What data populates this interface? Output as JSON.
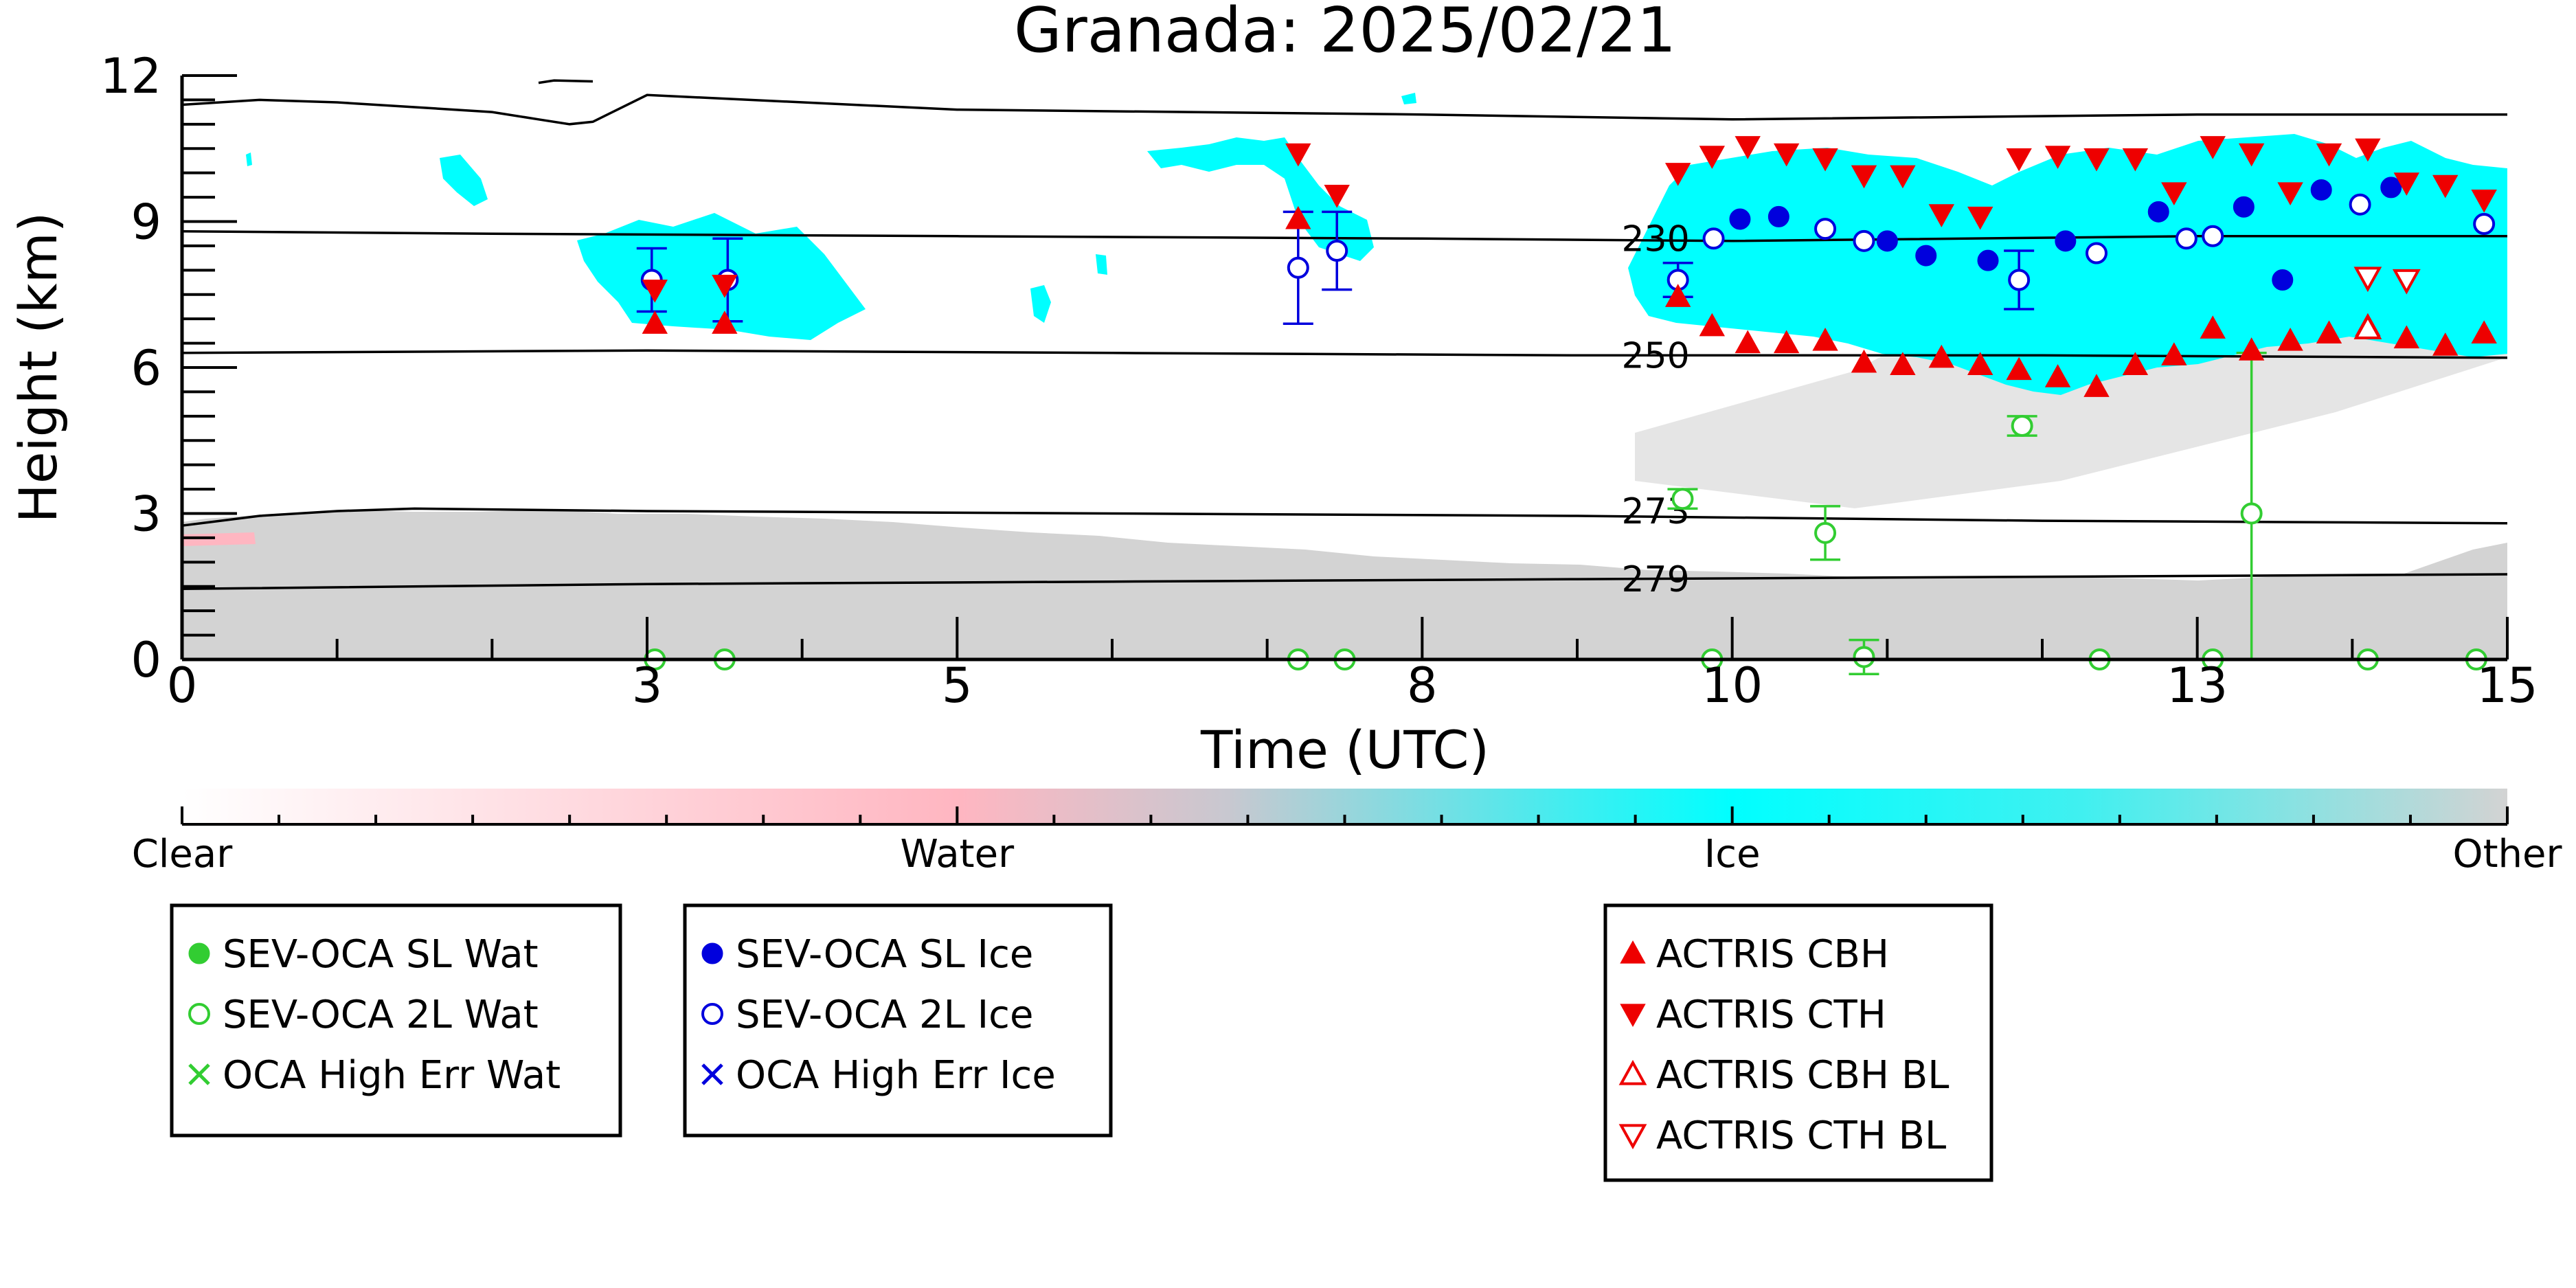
{
  "chart_data": {
    "type": "scatter",
    "title": "Granada: 2025/02/21",
    "xlabel": "Time (UTC)",
    "ylabel": "Height (km)",
    "xlim": [
      0,
      15
    ],
    "ylim": [
      0,
      12
    ],
    "x_ticks": [
      {
        "value": 0,
        "label": "0"
      },
      {
        "value": 3,
        "label": "3"
      },
      {
        "value": 5,
        "label": "5"
      },
      {
        "value": 8,
        "label": "8"
      },
      {
        "value": 10,
        "label": "10"
      },
      {
        "value": 13,
        "label": "13"
      },
      {
        "value": 15,
        "label": "15"
      }
    ],
    "y_ticks": [
      {
        "value": 0,
        "label": "0"
      },
      {
        "value": 3,
        "label": "3"
      },
      {
        "value": 6,
        "label": "6"
      },
      {
        "value": 9,
        "label": "9"
      },
      {
        "value": 12,
        "label": "12"
      }
    ],
    "colors": {
      "clear": "#ffffff",
      "water": "#ffb6c1",
      "ice": "#00ffff",
      "other": "#d3d3d3",
      "sl_wat": "#32cd32",
      "ice_marker": "#0000dd",
      "actris": "#ee0000",
      "isotherm": "#000000"
    },
    "isotherms": [
      {
        "label": "230",
        "x": [
          0,
          2,
          5,
          8,
          10,
          13,
          15
        ],
        "y": [
          8.8,
          8.75,
          8.7,
          8.65,
          8.6,
          8.7,
          8.7
        ]
      },
      {
        "label": "250",
        "x": [
          0,
          3,
          6,
          9,
          12,
          15
        ],
        "y": [
          6.3,
          6.35,
          6.3,
          6.25,
          6.25,
          6.2
        ]
      },
      {
        "label": "273",
        "x": [
          0,
          0.5,
          1,
          1.5,
          3,
          6,
          9,
          12,
          15
        ],
        "y": [
          2.75,
          2.95,
          3.05,
          3.1,
          3.05,
          3.0,
          2.95,
          2.85,
          2.8
        ]
      },
      {
        "label": "279",
        "x": [
          0,
          3,
          6,
          9,
          12,
          15
        ],
        "y": [
          1.45,
          1.55,
          1.6,
          1.65,
          1.7,
          1.75
        ]
      }
    ],
    "top_contour": {
      "x": [
        0,
        0.5,
        1,
        1.5,
        2,
        2.3,
        2.5,
        2.65,
        3,
        5,
        8,
        10,
        13,
        15
      ],
      "y": [
        11.4,
        11.5,
        11.45,
        11.35,
        11.25,
        11.1,
        11.0,
        11.05,
        11.6,
        11.3,
        11.2,
        11.1,
        11.2,
        11.2
      ]
    },
    "top_contour_2": {
      "x": [
        2.3,
        2.4,
        2.65
      ],
      "y": [
        11.85,
        11.9,
        11.88
      ]
    },
    "series": [
      {
        "name": "SEV-OCA SL Wat",
        "marker": "filled-circle",
        "color": "#32cd32",
        "points": []
      },
      {
        "name": "SEV-OCA 2L Wat",
        "marker": "open-circle",
        "color": "#32cd32",
        "points": [
          {
            "x": 3.05,
            "y": 0.0
          },
          {
            "x": 3.5,
            "y": 0.0
          },
          {
            "x": 7.2,
            "y": 0.0
          },
          {
            "x": 7.5,
            "y": 0.0
          },
          {
            "x": 9.68,
            "y": 3.3,
            "err": 0.2
          },
          {
            "x": 9.87,
            "y": 0.0
          },
          {
            "x": 10.6,
            "y": 2.6,
            "err": 0.55
          },
          {
            "x": 10.85,
            "y": 0.05,
            "err": 0.35
          },
          {
            "x": 11.87,
            "y": 4.8,
            "err": 0.2
          },
          {
            "x": 12.37,
            "y": 0.0
          },
          {
            "x": 13.1,
            "y": 0.0
          },
          {
            "x": 13.35,
            "y": 3.0,
            "lo": 0.0,
            "hi": 6.3
          },
          {
            "x": 14.1,
            "y": 0.0
          },
          {
            "x": 14.8,
            "y": 0.0
          }
        ]
      },
      {
        "name": "OCA High Err Wat",
        "marker": "x",
        "color": "#32cd32",
        "points": []
      },
      {
        "name": "SEV-OCA SL Ice",
        "marker": "filled-circle",
        "color": "#0000dd",
        "points": [
          {
            "x": 10.05,
            "y": 9.05
          },
          {
            "x": 10.3,
            "y": 9.1
          },
          {
            "x": 11.0,
            "y": 8.6
          },
          {
            "x": 11.25,
            "y": 8.3
          },
          {
            "x": 11.65,
            "y": 8.2
          },
          {
            "x": 12.15,
            "y": 8.6
          },
          {
            "x": 12.75,
            "y": 9.2
          },
          {
            "x": 13.3,
            "y": 9.3
          },
          {
            "x": 13.55,
            "y": 7.8
          },
          {
            "x": 13.8,
            "y": 9.65
          },
          {
            "x": 14.25,
            "y": 9.7
          }
        ]
      },
      {
        "name": "SEV-OCA 2L Ice",
        "marker": "open-circle",
        "color": "#0000dd",
        "points": [
          {
            "x": 3.03,
            "y": 7.8,
            "err": 0.65
          },
          {
            "x": 3.52,
            "y": 7.8,
            "err": 0.85
          },
          {
            "x": 7.2,
            "y": 8.05,
            "err": 1.15
          },
          {
            "x": 7.45,
            "y": 8.4,
            "err": 0.8
          },
          {
            "x": 9.65,
            "y": 7.8,
            "err": 0.35
          },
          {
            "x": 9.88,
            "y": 8.65
          },
          {
            "x": 10.6,
            "y": 8.85
          },
          {
            "x": 10.85,
            "y": 8.6
          },
          {
            "x": 11.85,
            "y": 7.8,
            "err": 0.6
          },
          {
            "x": 12.35,
            "y": 8.35
          },
          {
            "x": 12.93,
            "y": 8.65
          },
          {
            "x": 13.1,
            "y": 8.7
          },
          {
            "x": 14.05,
            "y": 9.35
          },
          {
            "x": 14.85,
            "y": 8.95
          }
        ]
      },
      {
        "name": "OCA High Err Ice",
        "marker": "x",
        "color": "#0000dd",
        "points": []
      },
      {
        "name": "ACTRIS CBH",
        "marker": "triangle-up",
        "color": "#ee0000",
        "points": [
          {
            "x": 3.05,
            "y": 6.9
          },
          {
            "x": 3.5,
            "y": 6.9
          },
          {
            "x": 7.2,
            "y": 9.05
          },
          {
            "x": 9.65,
            "y": 7.45
          },
          {
            "x": 9.87,
            "y": 6.85
          },
          {
            "x": 10.1,
            "y": 6.5
          },
          {
            "x": 10.35,
            "y": 6.5
          },
          {
            "x": 10.6,
            "y": 6.55
          },
          {
            "x": 10.85,
            "y": 6.1
          },
          {
            "x": 11.1,
            "y": 6.05
          },
          {
            "x": 11.35,
            "y": 6.2
          },
          {
            "x": 11.6,
            "y": 6.05
          },
          {
            "x": 11.85,
            "y": 5.95
          },
          {
            "x": 12.1,
            "y": 5.8
          },
          {
            "x": 12.35,
            "y": 5.6
          },
          {
            "x": 12.6,
            "y": 6.05
          },
          {
            "x": 12.85,
            "y": 6.25
          },
          {
            "x": 13.1,
            "y": 6.8
          },
          {
            "x": 13.35,
            "y": 6.35
          },
          {
            "x": 13.6,
            "y": 6.55
          },
          {
            "x": 13.85,
            "y": 6.7
          },
          {
            "x": 14.1,
            "y": 6.85
          },
          {
            "x": 14.35,
            "y": 6.6
          },
          {
            "x": 14.6,
            "y": 6.45
          },
          {
            "x": 14.85,
            "y": 6.7
          }
        ]
      },
      {
        "name": "ACTRIS CTH",
        "marker": "triangle-down",
        "color": "#ee0000",
        "points": [
          {
            "x": 3.05,
            "y": 7.6
          },
          {
            "x": 3.5,
            "y": 7.7
          },
          {
            "x": 7.2,
            "y": 10.4
          },
          {
            "x": 7.45,
            "y": 9.55
          },
          {
            "x": 9.65,
            "y": 10.0
          },
          {
            "x": 9.87,
            "y": 10.35
          },
          {
            "x": 10.1,
            "y": 10.55
          },
          {
            "x": 10.35,
            "y": 10.4
          },
          {
            "x": 10.6,
            "y": 10.3
          },
          {
            "x": 10.85,
            "y": 9.95
          },
          {
            "x": 11.1,
            "y": 9.95
          },
          {
            "x": 11.35,
            "y": 9.15
          },
          {
            "x": 11.6,
            "y": 9.1
          },
          {
            "x": 11.85,
            "y": 10.3
          },
          {
            "x": 12.1,
            "y": 10.35
          },
          {
            "x": 12.35,
            "y": 10.3
          },
          {
            "x": 12.6,
            "y": 10.3
          },
          {
            "x": 12.85,
            "y": 9.6
          },
          {
            "x": 13.1,
            "y": 10.55
          },
          {
            "x": 13.35,
            "y": 10.4
          },
          {
            "x": 13.6,
            "y": 9.6
          },
          {
            "x": 13.85,
            "y": 10.4
          },
          {
            "x": 14.1,
            "y": 10.5
          },
          {
            "x": 14.35,
            "y": 9.8
          },
          {
            "x": 14.6,
            "y": 9.75
          },
          {
            "x": 14.85,
            "y": 9.45
          }
        ]
      },
      {
        "name": "ACTRIS CBH BL",
        "marker": "open-triangle-up",
        "color": "#ee0000",
        "points": [
          {
            "x": 14.1,
            "y": 6.8
          }
        ]
      },
      {
        "name": "ACTRIS CTH BL",
        "marker": "open-triangle-down",
        "color": "#ee0000",
        "points": [
          {
            "x": 14.1,
            "y": 7.85
          },
          {
            "x": 14.35,
            "y": 7.8
          }
        ]
      }
    ],
    "colorbar": {
      "labels": [
        {
          "value": 0,
          "text": "Clear"
        },
        {
          "value": 1,
          "text": "Water"
        },
        {
          "value": 2,
          "text": "Ice"
        },
        {
          "value": 3,
          "text": "Other"
        }
      ],
      "stops": [
        {
          "value": 0,
          "color": "#ffffff"
        },
        {
          "value": 1,
          "color": "#ffb6c1"
        },
        {
          "value": 1.35,
          "color": "#c8c8d0"
        },
        {
          "value": 2,
          "color": "#00ffff"
        },
        {
          "value": 2.45,
          "color": "#40f0f0"
        },
        {
          "value": 3,
          "color": "#d3d3d3"
        }
      ]
    },
    "legends": [
      {
        "position": "bottom-left",
        "series": [
          "SEV-OCA SL Wat",
          "SEV-OCA 2L Wat",
          "OCA High Err Wat"
        ]
      },
      {
        "position": "bottom-center-left",
        "series": [
          "SEV-OCA SL Ice",
          "SEV-OCA 2L Ice",
          "OCA High Err Ice"
        ]
      },
      {
        "position": "bottom-center-right",
        "series": [
          "ACTRIS CBH",
          "ACTRIS CTH",
          "ACTRIS CBH BL",
          "ACTRIS CTH BL"
        ]
      }
    ]
  }
}
